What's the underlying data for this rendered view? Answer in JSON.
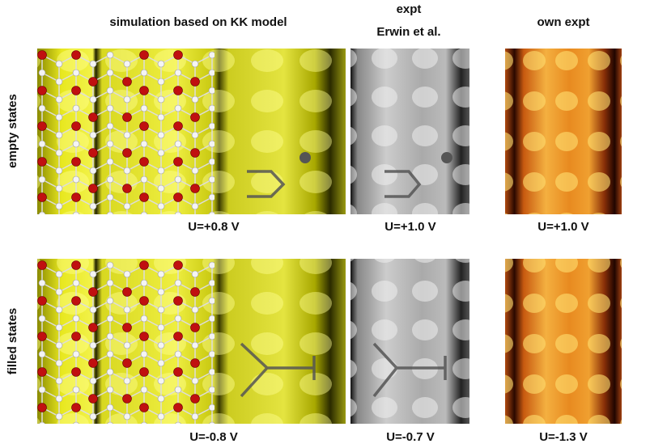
{
  "columns": [
    {
      "title": "simulation based on KK model"
    },
    {
      "title_lines": [
        "expt",
        "Erwin et al."
      ]
    },
    {
      "title": "own expt"
    }
  ],
  "rows": [
    {
      "label": "empty states",
      "voltages": [
        "U=+0.8 V",
        "U=+1.0 V",
        "U=+1.0 V"
      ]
    },
    {
      "label": "filled states",
      "voltages": [
        "U=-0.8 V",
        "U=-0.7 V",
        "U=-1.3 V"
      ]
    }
  ]
}
